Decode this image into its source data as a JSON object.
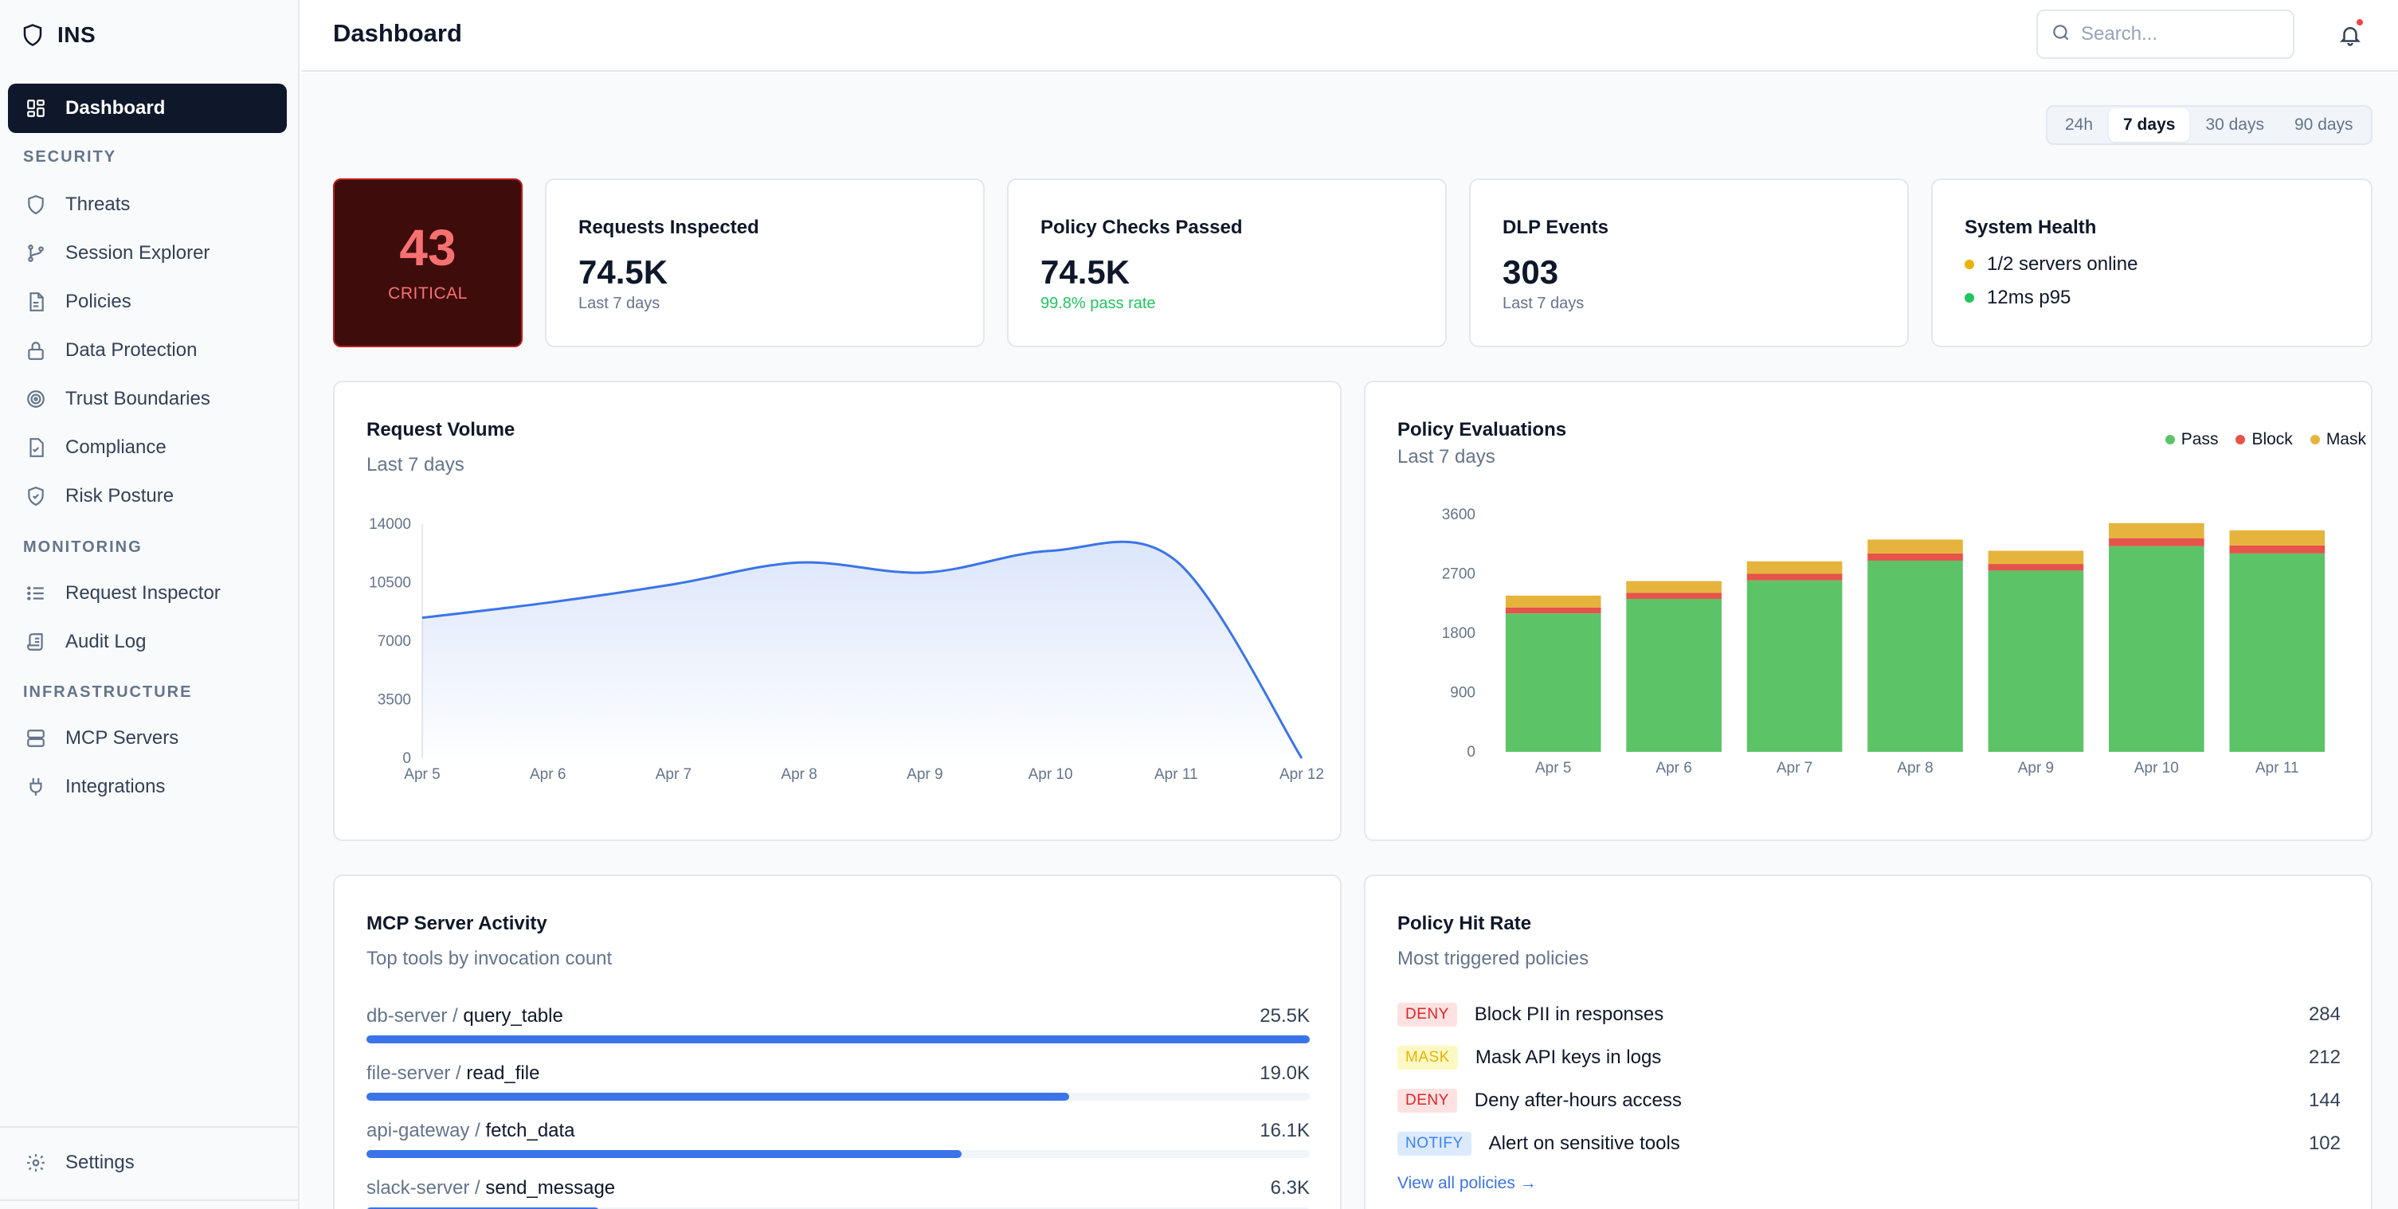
{
  "app": {
    "name": "INS"
  },
  "sidebar": {
    "active": {
      "label": "Dashboard"
    },
    "sections": [
      {
        "label": "SECURITY",
        "items": [
          {
            "label": "Threats"
          },
          {
            "label": "Session Explorer"
          },
          {
            "label": "Policies"
          },
          {
            "label": "Data Protection"
          },
          {
            "label": "Trust Boundaries"
          },
          {
            "label": "Compliance"
          },
          {
            "label": "Risk Posture"
          }
        ]
      },
      {
        "label": "MONITORING",
        "items": [
          {
            "label": "Request Inspector"
          },
          {
            "label": "Audit Log"
          }
        ]
      },
      {
        "label": "INFRASTRUCTURE",
        "items": [
          {
            "label": "MCP Servers"
          },
          {
            "label": "Integrations"
          }
        ]
      }
    ],
    "settings": {
      "label": "Settings"
    }
  },
  "header": {
    "title": "Dashboard",
    "search_placeholder": "Search...",
    "has_notification": true
  },
  "range": {
    "options": [
      "24h",
      "7 days",
      "30 days",
      "90 days"
    ],
    "selected": "7 days"
  },
  "critical": {
    "value": "43",
    "label": "CRITICAL"
  },
  "stats": [
    {
      "title": "Requests Inspected",
      "value": "74.5K",
      "sub": "Last 7 days"
    },
    {
      "title": "Policy Checks Passed",
      "value": "74.5K",
      "sub": "99.8% pass rate"
    },
    {
      "title": "DLP Events",
      "value": "303",
      "sub": "Last 7 days"
    }
  ],
  "health": {
    "title": "System Health",
    "lines": [
      {
        "text": "1/2 servers online",
        "color": "#eab308"
      },
      {
        "text": "12ms p95",
        "color": "#22c55e"
      }
    ]
  },
  "request_volume": {
    "title": "Request Volume",
    "subtitle": "Last 7 days"
  },
  "policy_evaluations": {
    "title": "Policy Evaluations",
    "subtitle": "Last 7 days",
    "legend": [
      {
        "label": "Pass",
        "color": "#5cc466"
      },
      {
        "label": "Block",
        "color": "#e5534b"
      },
      {
        "label": "Mask",
        "color": "#e6b43c"
      }
    ]
  },
  "chart_data": [
    {
      "type": "area",
      "x": [
        "Apr 5",
        "Apr 6",
        "Apr 7",
        "Apr 8",
        "Apr 9",
        "Apr 10",
        "Apr 11",
        "Apr 12"
      ],
      "y_ticks": [
        0,
        3500,
        7000,
        10500,
        14000
      ],
      "ylim": [
        0,
        14000
      ],
      "series": [
        {
          "values": [
            8400,
            9300,
            10400,
            11700,
            11100,
            12400,
            11800,
            0
          ]
        }
      ],
      "color": "#3b74e8"
    },
    {
      "type": "bar",
      "stacked": true,
      "categories": [
        "Apr 5",
        "Apr 6",
        "Apr 7",
        "Apr 8",
        "Apr 9",
        "Apr 10",
        "Apr 11"
      ],
      "y_ticks": [
        0,
        900,
        1800,
        2700,
        3600
      ],
      "ylim": [
        0,
        3600
      ],
      "series": [
        {
          "name": "Pass",
          "values": [
            2100,
            2320,
            2600,
            2900,
            2750,
            3120,
            3010
          ]
        },
        {
          "name": "Block",
          "values": [
            90,
            90,
            100,
            110,
            100,
            120,
            120
          ]
        },
        {
          "name": "Mask",
          "values": [
            180,
            180,
            190,
            210,
            200,
            230,
            230
          ]
        }
      ]
    }
  ],
  "mcp_activity": {
    "title": "MCP Server Activity",
    "subtitle": "Top tools by invocation count",
    "tools": [
      {
        "server": "db-server",
        "tool": "query_table",
        "count": "25.5K",
        "fraction": 1.0
      },
      {
        "server": "file-server",
        "tool": "read_file",
        "count": "19.0K",
        "fraction": 0.745
      },
      {
        "server": "api-gateway",
        "tool": "fetch_data",
        "count": "16.1K",
        "fraction": 0.631
      },
      {
        "server": "slack-server",
        "tool": "send_message",
        "count": "6.3K",
        "fraction": 0.247
      }
    ]
  },
  "policy_hit_rate": {
    "title": "Policy Hit Rate",
    "subtitle": "Most triggered policies",
    "rows": [
      {
        "badge": "DENY",
        "kind": "deny",
        "name": "Block PII in responses",
        "count": "284"
      },
      {
        "badge": "MASK",
        "kind": "mask",
        "name": "Mask API keys in logs",
        "count": "212"
      },
      {
        "badge": "DENY",
        "kind": "deny",
        "name": "Deny after-hours access",
        "count": "144"
      },
      {
        "badge": "NOTIFY",
        "kind": "notify",
        "name": "Alert on sensitive tools",
        "count": "102"
      }
    ],
    "view_all": "View all policies →"
  }
}
